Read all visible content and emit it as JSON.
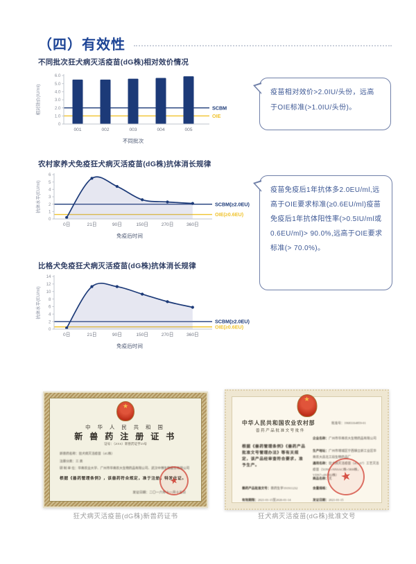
{
  "page": {
    "section_title": "（四）有效性"
  },
  "colors": {
    "navy": "#1c3a78",
    "gold": "#f0c32e",
    "area_fill": "rgba(140,145,190,0.22)",
    "axis": "#bfc4cd",
    "tick_text": "#8b8f99",
    "axis_label": "#4a5671"
  },
  "chart_data": [
    {
      "id": "potency",
      "type": "bar",
      "title": "不同批次狂犬病灭活疫苗(dG株)相对效价情况",
      "categories": [
        "001",
        "002",
        "003",
        "004",
        "005"
      ],
      "values": [
        5.5,
        5.5,
        5.6,
        5.7,
        5.9
      ],
      "xlabel": "不同批次",
      "ylabel": "相对效价(IU/ml)",
      "ylim": [
        0,
        6.0
      ],
      "yticks": [
        "0",
        "1.0",
        "2.0",
        "3.0",
        "4.0",
        "5.0",
        "6.0"
      ],
      "ref_lines": [
        {
          "label": "SCBM",
          "value": 2.0,
          "color": "#1c3a78"
        },
        {
          "label": "OIE",
          "value": 1.0,
          "color": "#f0c32e"
        }
      ]
    },
    {
      "id": "rural",
      "type": "line",
      "title": "农村家养犬免疫狂犬病灭活疫苗(dG株)抗体消长规律",
      "categories": [
        "0日",
        "21日",
        "90日",
        "150日",
        "270日",
        "360日"
      ],
      "values": [
        0.2,
        5.5,
        4.4,
        2.6,
        2.3,
        2.1
      ],
      "xlabel": "免疫后时间",
      "ylabel": "抗体水平(EU/ml)",
      "ylim": [
        0,
        6
      ],
      "yticks": [
        "0",
        "1",
        "2",
        "3",
        "4",
        "5",
        "6"
      ],
      "area": true,
      "ref_lines": [
        {
          "label": "SCBM(≥2.0EU)",
          "value": 2.0,
          "color": "#1c3a78"
        },
        {
          "label": "OIE(≥0.6EU)",
          "value": 0.6,
          "color": "#f0c32e"
        }
      ]
    },
    {
      "id": "beagle",
      "type": "line",
      "title": "比格犬免疫狂犬病灭活疫苗(dG株)抗体消长规律",
      "categories": [
        "0日",
        "21日",
        "90日",
        "150日",
        "270日",
        "360日"
      ],
      "values": [
        0.3,
        11.3,
        11.3,
        9.3,
        7.3,
        5.8
      ],
      "xlabel": "免疫后时间",
      "ylabel": "抗体水平(EU/ml)",
      "ylim": [
        0,
        14
      ],
      "yticks": [
        "0",
        "2",
        "4",
        "6",
        "8",
        "10",
        "12",
        "14"
      ],
      "area": true,
      "ref_lines": [
        {
          "label": "SCBM(≥2.0EU)",
          "value": 2.0,
          "color": "#1c3a78"
        },
        {
          "label": "OIE(≥0.6EU)",
          "value": 0.6,
          "color": "#f0c32e"
        }
      ]
    }
  ],
  "callouts": [
    {
      "text": "疫苗相对效价>2.0IU/头份，远高于OIE标准(>1.0IU/头份)。"
    },
    {
      "text": "疫苗免疫后1年抗体多2.0EU/ml,远高于OIE要求标准(≥0.6EU/ml)疫苗免疫后1年抗体阳性率(>0.5IU/ml或0.6EU/ml)> 90.0%,远高于OIE要求标准(> 70.0%)。"
    }
  ],
  "certificates": [
    {
      "country": "中 华 人 民 共 和 国",
      "title": "新 兽 药 注 册 证 书",
      "cert_no": "证号：（2016）新兽药证字23号",
      "body_lines": [
        "新兽药名称：狂犬病灭活疫苗（dG株）",
        "注册分类：三 类",
        "研 制 单 位：华南农业大学、广州市华南农大生物药品有限公司、武汉中博生物股份有限公司"
      ],
      "approval": "根据《兽药管理条例》，该兽药符合规定，准于注册，特发此证。",
      "date_line": "发证日期：二〇一六年十一月十五日",
      "seal_star": "★",
      "caption": "狂犬病灭活疫苗(dG株)新兽药证书"
    },
    {
      "ministry": "中华人民共和国农业农村部",
      "doc_title": "兽药产品批准文号批件",
      "approval_no": "批准号：19683164859-01",
      "body": "根据《兽药管理条例》《兽药产品批准文号管理办法》等有关规定，该产品经审查符合要求，准予生产。",
      "fields": [
        {
          "label": "企业名称：",
          "value": "广州市华南农大生物药品有限公司"
        },
        {
          "label": "生产地址：",
          "value": "广州市增城区宁西镇立新工业区华南农大昌北工段生物药品厂"
        },
        {
          "label": "通用名称：",
          "value": "狂犬病灭活疫苗（dG+67）工艺灭活疫苗（5ONC+NNSAC株+5RH株，VDN7+4N7H2株）"
        },
        {
          "label": "商品名称：",
          "value": "无"
        }
      ],
      "bottom_fields": [
        {
          "label": "兽药产品批准文号：",
          "value": "兽药生字191911232"
        },
        {
          "label": "有效期限：",
          "value": "2021-01-15至2026-01-14"
        },
        {
          "label": "含量规格：",
          "value": ""
        },
        {
          "label": "发证日期：",
          "value": "2021-01-15"
        }
      ],
      "seal_star": "★",
      "caption": "狂犬病灭活疫苗(dG株)批准文号"
    }
  ]
}
